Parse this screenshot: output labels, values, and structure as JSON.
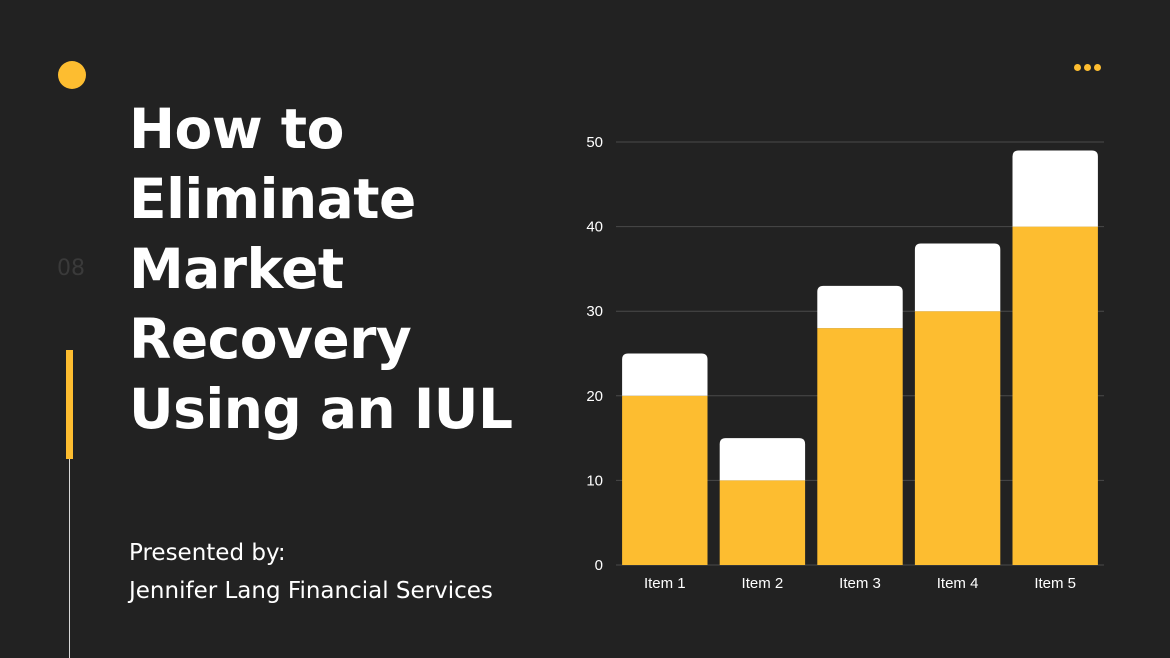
{
  "slide": {
    "number": "08",
    "title": "How to Eliminate Market Recovery Using an IUL",
    "presenter_label": "Presented by:",
    "presenter_name": "Jennifer Lang Financial Services"
  },
  "colors": {
    "background": "#222222",
    "accent": "#FDBD30",
    "secondary": "#FFFFFF",
    "gridline": "#4a4a4a"
  },
  "icons": {
    "menu": "more-horizontal-icon"
  },
  "chart_data": {
    "type": "bar",
    "stacked": true,
    "categories": [
      "Item 1",
      "Item 2",
      "Item 3",
      "Item 4",
      "Item 5"
    ],
    "series": [
      {
        "values": [
          20,
          10,
          28,
          30,
          40
        ],
        "color": "#FDBD30"
      },
      {
        "values": [
          5,
          5,
          5,
          8,
          9
        ],
        "color": "#FFFFFF"
      }
    ],
    "ylim": [
      0,
      50
    ],
    "yticks": [
      0,
      10,
      20,
      30,
      40,
      50
    ],
    "grid": true,
    "legend": "none"
  }
}
